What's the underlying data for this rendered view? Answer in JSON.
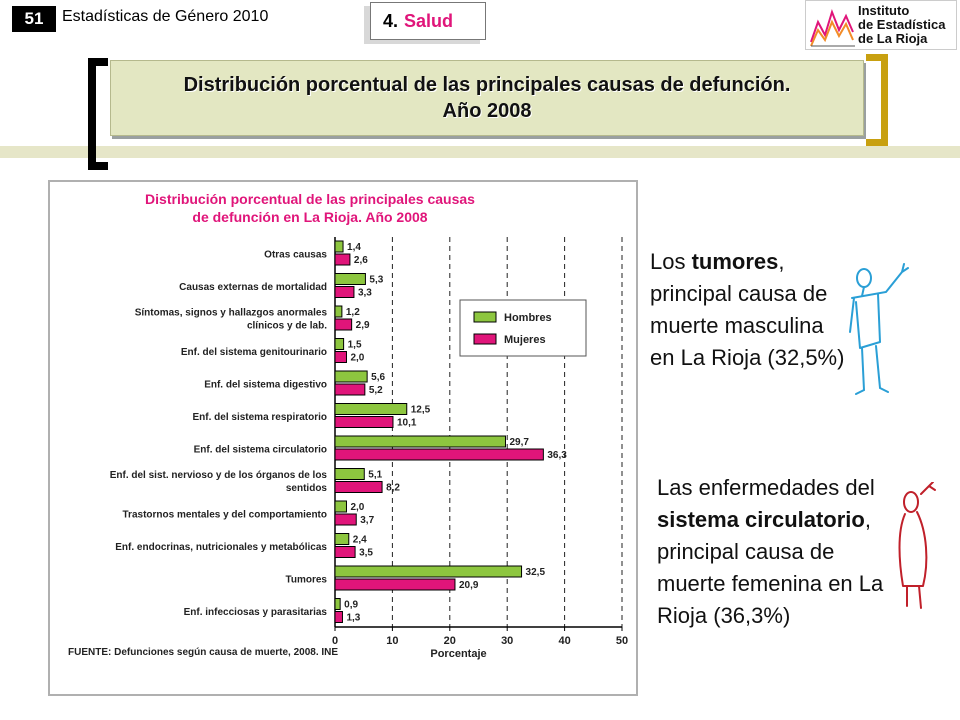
{
  "header": {
    "page_number": "51",
    "publication": "Estadísticas de Género 2010",
    "section_number": "4.",
    "section_name": "Salud",
    "logo_lines": [
      "Instituto",
      "de Estadística",
      "de La Rioja"
    ]
  },
  "slide_title": {
    "line1": "Distribución porcentual de las principales causas de defunción.",
    "line2": "Año 2008"
  },
  "annotations": {
    "men": {
      "pre": "Los ",
      "bold": "tumores",
      "post": ", principal causa de muerte masculina en La Rioja (32,5%)"
    },
    "women": {
      "pre": "Las enfermedades del ",
      "bold": "sistema circulatorio",
      "post": ", principal causa de muerte femenina en La Rioja (36,3%)"
    }
  },
  "chart_data": {
    "type": "bar",
    "orientation": "horizontal",
    "title": "Distribución porcentual de las principales causas de defunción en La Rioja. Año 2008",
    "title_lines": [
      "Distribución porcentual de las principales causas",
      "de defunción en La Rioja. Año 2008"
    ],
    "categories": [
      [
        "Otras causas"
      ],
      [
        "Causas externas de mortalidad"
      ],
      [
        "Síntomas, signos y hallazgos anormales",
        "clínicos y de lab."
      ],
      [
        "Enf. del sistema genitourinario"
      ],
      [
        "Enf. del sistema digestivo"
      ],
      [
        "Enf. del sistema respiratorio"
      ],
      [
        "Enf. del sistema circulatorio"
      ],
      [
        "Enf. del sist. nervioso y de los órganos de los",
        "sentidos"
      ],
      [
        "Trastornos mentales y del comportamiento"
      ],
      [
        "Enf. endocrinas, nutricionales y metabólicas"
      ],
      [
        "Tumores"
      ],
      [
        "Enf. infecciosas y parasitarias"
      ]
    ],
    "series": [
      {
        "name": "Hombres",
        "color": "#8dc63f",
        "values": [
          1.4,
          5.3,
          1.2,
          1.5,
          5.6,
          12.5,
          29.7,
          5.1,
          2.0,
          2.4,
          32.5,
          0.9
        ],
        "labels": [
          "1,4",
          "5,3",
          "1,2",
          "1,5",
          "5,6",
          "12,5",
          "29,7",
          "5,1",
          "2,0",
          "2,4",
          "32,5",
          "0,9"
        ]
      },
      {
        "name": "Mujeres",
        "color": "#e0157a",
        "values": [
          2.6,
          3.3,
          2.9,
          2.0,
          5.2,
          10.1,
          36.3,
          8.2,
          3.7,
          3.5,
          20.9,
          1.3
        ],
        "labels": [
          "2,6",
          "3,3",
          "2,9",
          "2,0",
          "5,2",
          "10,1",
          "36,3",
          "8,2",
          "3,7",
          "3,5",
          "20,9",
          "1,3"
        ]
      }
    ],
    "xlabel": "Porcentaje",
    "xlim": [
      0,
      50
    ],
    "xticks": [
      0,
      10,
      20,
      30,
      40,
      50
    ],
    "grid": "vertical dashed",
    "legend": "right",
    "source": "FUENTE: Defunciones según causa de muerte, 2008. INE"
  },
  "colors": {
    "title_pink": "#e0157a",
    "bar_green": "#8dc63f",
    "bar_pink": "#e0157a",
    "band": "#e6e6c8",
    "bracket_gold": "#c8a010",
    "figure_blue": "#2a9fd6",
    "figure_red": "#c0202a"
  }
}
